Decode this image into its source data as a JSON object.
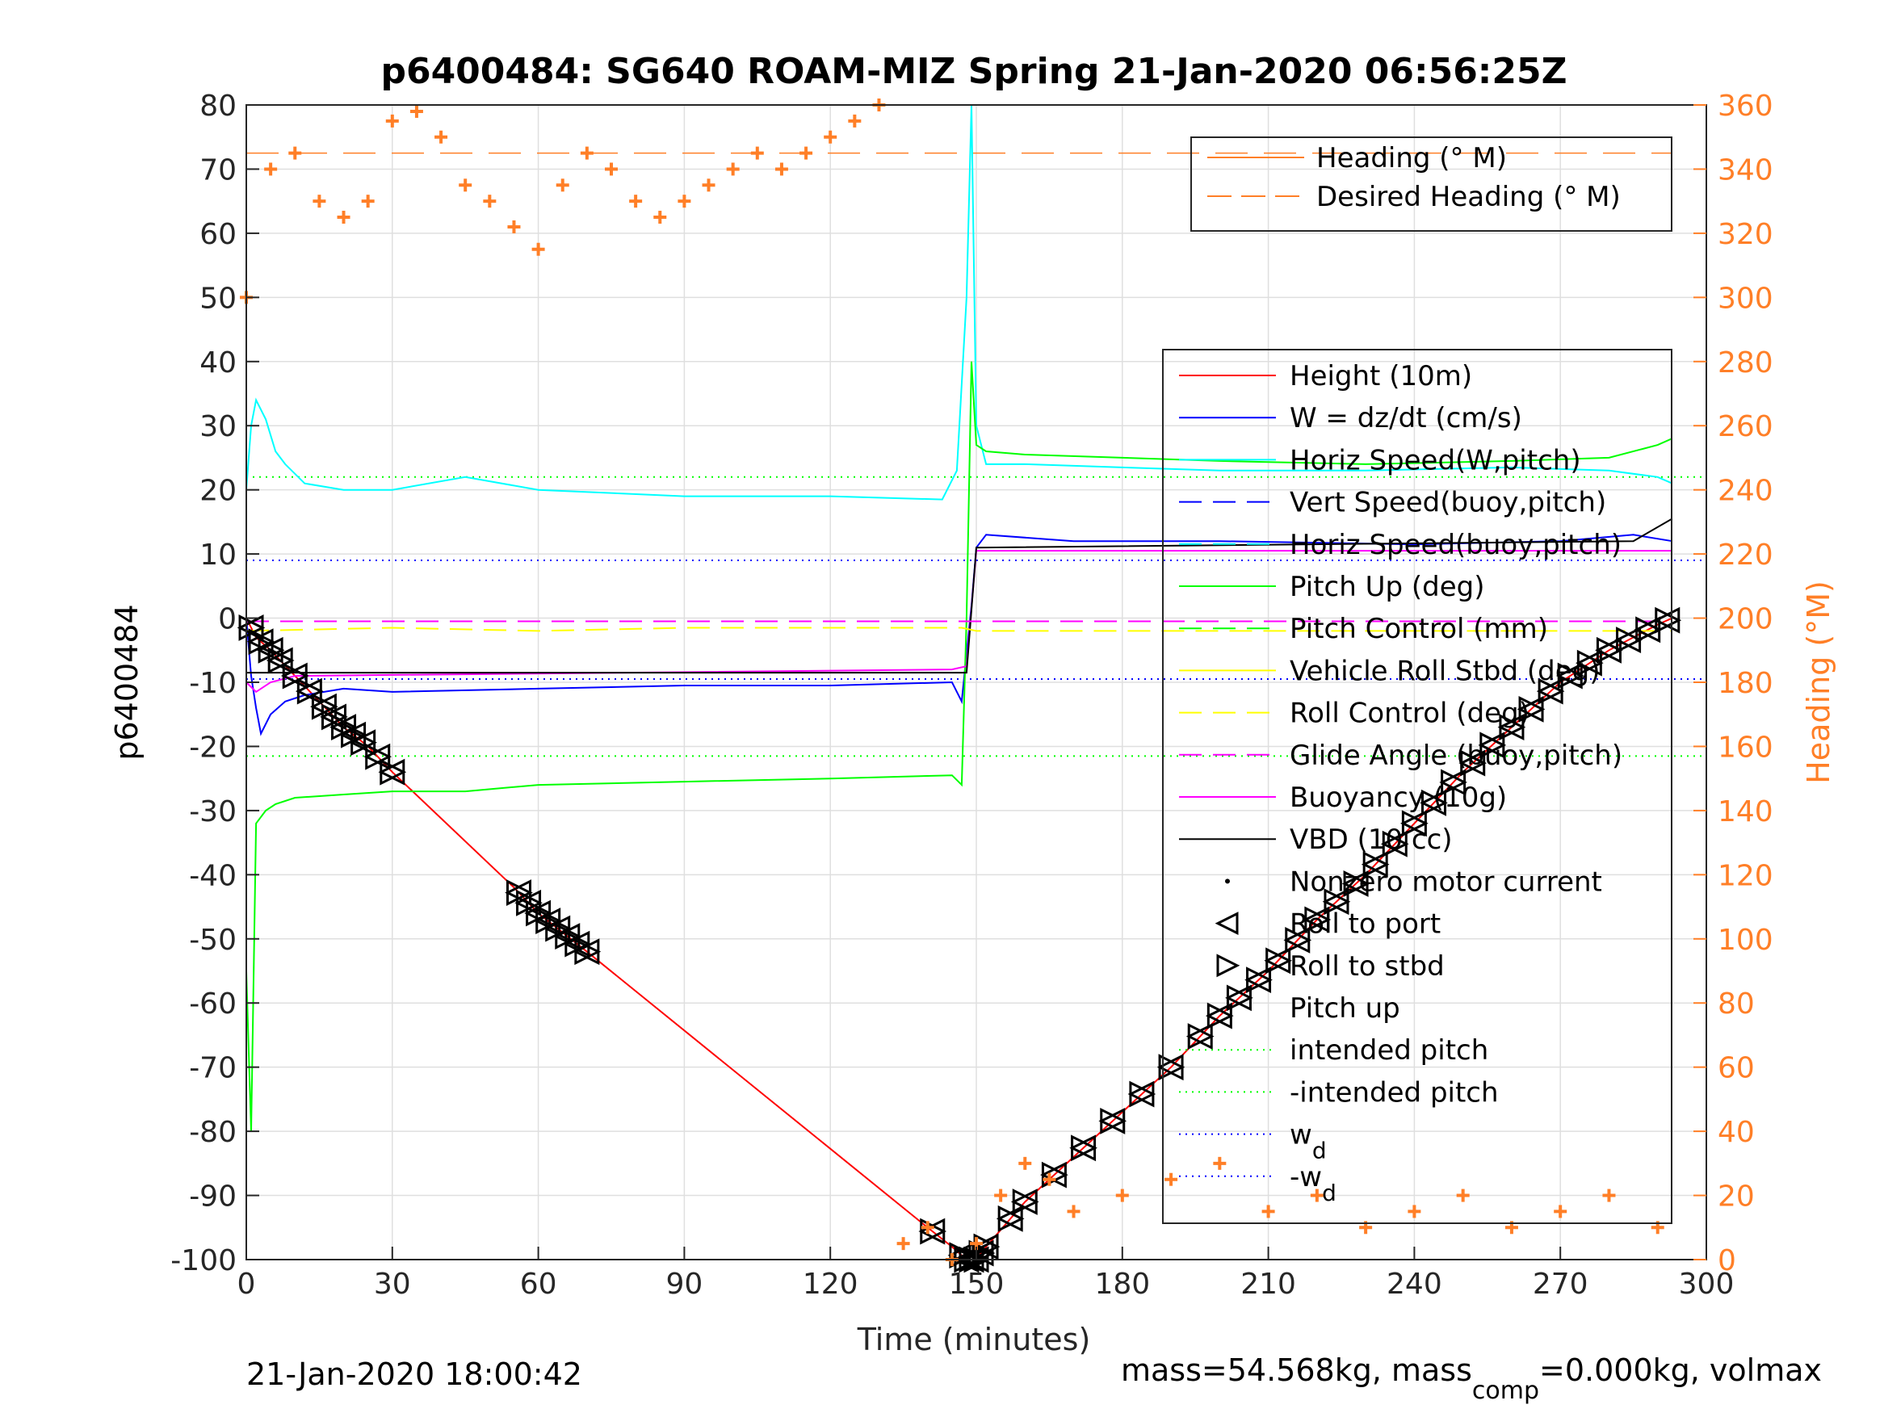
{
  "chart_data": {
    "type": "line",
    "title": "p6400484: SG640 ROAM-MIZ Spring 21-Jan-2020 06:56:25Z",
    "xlabel": "Time (minutes)",
    "ylabel": "p6400484",
    "y2label": "Heading (°M)",
    "xlim": [
      0,
      300
    ],
    "ylim": [
      -100,
      80
    ],
    "y2lim": [
      0,
      360
    ],
    "xticks": [
      0,
      30,
      60,
      90,
      120,
      150,
      180,
      210,
      240,
      270,
      300
    ],
    "yticks": [
      80,
      70,
      60,
      50,
      40,
      30,
      20,
      10,
      0,
      -10,
      -20,
      -30,
      -40,
      -50,
      -60,
      -70,
      -80,
      -90,
      -100
    ],
    "y2ticks": [
      360,
      340,
      320,
      300,
      280,
      260,
      240,
      220,
      200,
      180,
      160,
      140,
      120,
      100,
      80,
      60,
      40,
      20,
      0
    ],
    "grid": true,
    "footer_left": "21-Jan-2020 18:00:42",
    "footer_right": {
      "a": "mass=54.568kg, mass",
      "sub": "comp",
      "b": "=0.000kg, volmax"
    },
    "legend_heading": {
      "placement": "top-right",
      "entries": [
        "Heading (° M)",
        "Desired Heading (° M)"
      ]
    },
    "legend_main": {
      "placement": "right",
      "entries": [
        {
          "label": "Height (10m)",
          "color": "#ff0000",
          "style": "solid"
        },
        {
          "label": "W = dz/dt (cm/s)",
          "color": "#0000ff",
          "style": "solid"
        },
        {
          "label": "Horiz Speed(W,pitch)",
          "color": "#00ffff",
          "style": "solid"
        },
        {
          "label": "Vert Speed(buoy,pitch)",
          "color": "#0000ff",
          "style": "dash"
        },
        {
          "label": "Horiz Speed(buoy,pitch)",
          "color": "#00ffff",
          "style": "dash"
        },
        {
          "label": "Pitch Up (deg)",
          "color": "#00ff00",
          "style": "solid"
        },
        {
          "label": "Pitch Control (mm)",
          "color": "#00ff00",
          "style": "dash"
        },
        {
          "label": "Vehicle Roll Stbd (deg)",
          "color": "#ffff00",
          "style": "solid"
        },
        {
          "label": "Roll Control (deg)",
          "color": "#ffff00",
          "style": "dash"
        },
        {
          "label": "Glide Angle (buoy,pitch)",
          "color": "#ff00ff",
          "style": "dash"
        },
        {
          "label": "Buoyancy (10g)",
          "color": "#ff00ff",
          "style": "solid"
        },
        {
          "label": "VBD (10 cc)",
          "color": "#000000",
          "style": "solid"
        },
        {
          "label": "Nonzero motor current",
          "color": "#000000",
          "style": "dot"
        },
        {
          "label": "Roll to port",
          "color": "#000000",
          "style": "tri-left"
        },
        {
          "label": "Roll to stbd",
          "color": "#000000",
          "style": "tri-right"
        },
        {
          "label": "Pitch up",
          "color": "#000000",
          "style": "tri-up"
        },
        {
          "label": "intended pitch",
          "color": "#00ff00",
          "style": "dotted"
        },
        {
          "label": "-intended pitch",
          "color": "#00ff00",
          "style": "dotted"
        },
        {
          "label": "w",
          "sub": "d",
          "color": "#0000ff",
          "style": "dotted"
        },
        {
          "label": "-w",
          "sub": "d",
          "color": "#0000ff",
          "style": "dotted"
        }
      ]
    },
    "reference_lines": {
      "intended_pitch": 22,
      "neg_intended_pitch": -21.5,
      "w_d": 9,
      "neg_w_d": -9.5
    },
    "series": [
      {
        "name": "Height (10m)",
        "color": "#ff0000",
        "x": [
          0,
          2,
          5,
          10,
          15,
          20,
          25,
          30,
          55,
          60,
          65,
          70,
          140,
          145,
          148,
          150,
          152,
          160,
          170,
          180,
          190,
          200,
          210,
          220,
          230,
          240,
          250,
          260,
          270,
          280,
          290,
          293
        ],
        "y": [
          0,
          -3,
          -5,
          -9,
          -13,
          -17,
          -20,
          -24,
          -42,
          -46,
          -49,
          -52,
          -95,
          -98,
          -100,
          -100,
          -98,
          -91,
          -84,
          -77,
          -70,
          -62,
          -55,
          -47,
          -40,
          -32,
          -24,
          -17,
          -10,
          -5,
          -1,
          0
        ]
      },
      {
        "name": "W = dz/dt (cm/s)",
        "color": "#0000ff",
        "x": [
          0,
          1,
          2,
          3,
          5,
          8,
          12,
          20,
          30,
          60,
          90,
          120,
          145,
          147,
          149,
          150,
          152,
          170,
          200,
          240,
          270,
          285,
          293
        ],
        "y": [
          0,
          -9,
          -14,
          -18,
          -15,
          -13,
          -12,
          -11,
          -11.5,
          -11,
          -10.5,
          -10.5,
          -10,
          -13,
          2,
          11,
          13,
          12,
          12,
          11.5,
          12,
          13,
          12
        ]
      },
      {
        "name": "Horiz Speed(W,pitch)",
        "color": "#00ffff",
        "x": [
          0,
          1,
          2,
          4,
          6,
          8,
          12,
          20,
          30,
          45,
          60,
          75,
          90,
          120,
          143,
          146,
          148,
          149,
          150,
          152,
          160,
          180,
          200,
          230,
          260,
          280,
          290,
          293
        ],
        "y": [
          20,
          30,
          34,
          31,
          26,
          24,
          21,
          20,
          20,
          22,
          20,
          19.5,
          19,
          19,
          18.5,
          23,
          50,
          80,
          30,
          24,
          24,
          23.5,
          23,
          23,
          23.5,
          23,
          22,
          21
        ]
      },
      {
        "name": "Pitch Up (deg)",
        "color": "#00ff00",
        "x": [
          0,
          1,
          2,
          4,
          6,
          10,
          20,
          30,
          45,
          60,
          90,
          120,
          145,
          147,
          148,
          149,
          150,
          152,
          160,
          180,
          200,
          230,
          260,
          280,
          290,
          293
        ],
        "y": [
          -55,
          -80,
          -32,
          -30,
          -29,
          -28,
          -27.5,
          -27,
          -27,
          -26,
          -25.5,
          -25,
          -24.5,
          -26,
          0,
          40,
          27,
          26,
          25.5,
          25,
          24.5,
          24,
          24.5,
          25,
          27,
          28
        ]
      },
      {
        "name": "Buoyancy (10g)",
        "color": "#ff00ff",
        "x": [
          0,
          2,
          5,
          10,
          145,
          148,
          150,
          293
        ],
        "y": [
          -10,
          -11.5,
          -10,
          -9,
          -8,
          -7.5,
          10.5,
          10.5
        ]
      },
      {
        "name": "VBD (10 cc)",
        "color": "#000000",
        "x": [
          0,
          2,
          5,
          10,
          145,
          148,
          150,
          285,
          293
        ],
        "y": [
          -8.5,
          -8.5,
          -8.5,
          -8.5,
          -8.5,
          -8.5,
          11,
          12,
          15.5
        ]
      },
      {
        "name": "Glide Angle (buoy,pitch)",
        "color": "#ff00ff",
        "x": [
          0,
          293
        ],
        "y": [
          -0.5,
          -0.5
        ]
      },
      {
        "name": "Roll Control (deg)",
        "color": "#ffff00",
        "x": [
          0,
          30,
          60,
          90,
          120,
          147,
          150,
          200,
          250,
          293
        ],
        "y": [
          -2,
          -1.5,
          -2,
          -1.5,
          -1.5,
          -1.5,
          -2,
          -2,
          -2,
          -2
        ]
      },
      {
        "name": "Heading (° M)",
        "color": "#ff7f27",
        "axis": "right",
        "x": [
          0,
          5,
          10,
          15,
          20,
          25,
          30,
          35,
          40,
          45,
          50,
          55,
          60,
          65,
          70,
          75,
          80,
          85,
          90,
          95,
          100,
          105,
          110,
          115,
          120,
          125,
          130,
          135,
          140,
          145,
          150,
          155,
          160,
          165,
          170,
          180,
          190,
          200,
          210,
          220,
          230,
          240,
          250,
          260,
          270,
          280,
          290
        ],
        "y": [
          300,
          340,
          345,
          330,
          325,
          330,
          355,
          358,
          350,
          335,
          330,
          322,
          315,
          335,
          345,
          340,
          330,
          325,
          330,
          335,
          340,
          345,
          340,
          345,
          350,
          355,
          360,
          5,
          10,
          0,
          5,
          20,
          30,
          25,
          15,
          20,
          25,
          30,
          15,
          20,
          10,
          15,
          20,
          10,
          15,
          20,
          10
        ]
      },
      {
        "name": "Desired Heading (° M)",
        "color": "#ff7f27",
        "axis": "right",
        "x": [
          0,
          293
        ],
        "y": [
          345,
          345
        ]
      }
    ],
    "markers": {
      "roll_symbols_x": [
        1,
        3,
        5,
        7,
        10,
        13,
        16,
        18,
        20,
        22,
        24,
        27,
        30,
        56,
        58,
        60,
        62,
        64,
        66,
        68,
        70,
        141,
        147,
        148,
        149,
        150,
        151,
        152,
        157,
        160,
        166,
        172,
        178,
        184,
        190,
        196,
        200,
        204,
        208,
        212,
        216,
        220,
        224,
        228,
        232,
        236,
        240,
        244,
        248,
        252,
        256,
        260,
        264,
        268,
        272,
        276,
        280,
        284,
        288,
        292
      ]
    }
  }
}
